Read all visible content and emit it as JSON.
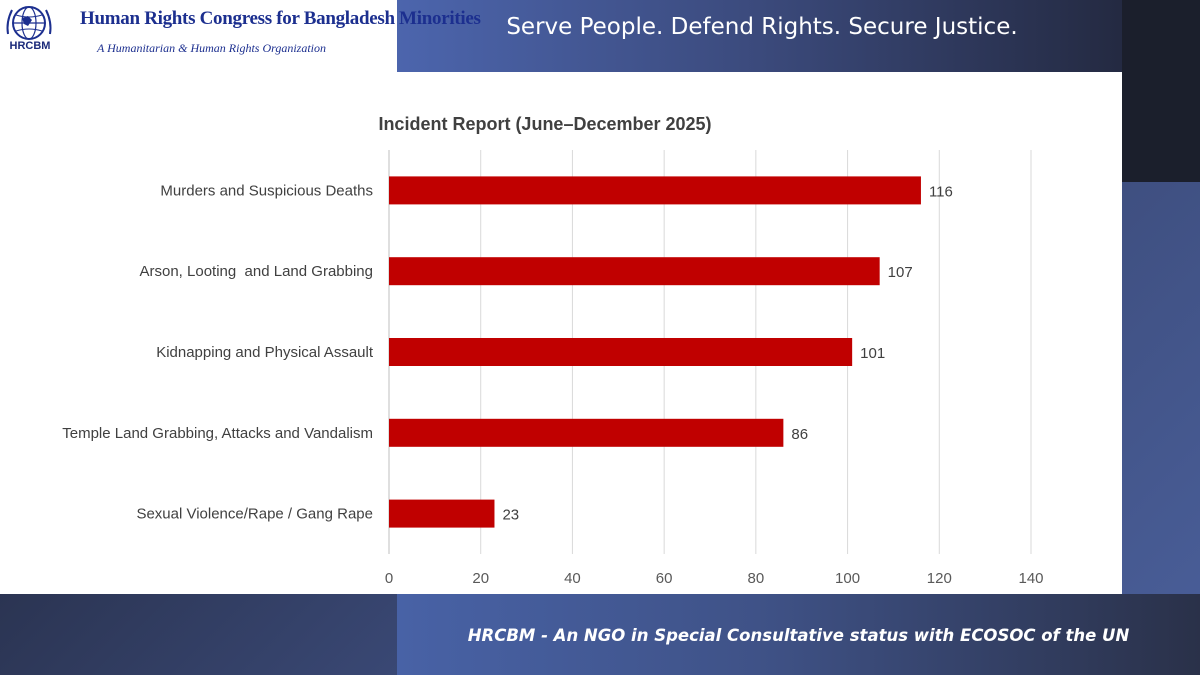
{
  "header": {
    "org_abbr": "HRCBM",
    "org_name": "Human Rights Congress for Bangladesh Minorities",
    "org_tagline": "A Humanitarian & Human Rights Organization",
    "slogan": "Serve People. Defend Rights. Secure Justice."
  },
  "footer": {
    "text": "HRCBM - An NGO in Special Consultative status with ECOSOC of the UN"
  },
  "colors": {
    "bar": "#c00000",
    "brand_blue": "#1c2f8f",
    "gridline": "#d9d9d9"
  },
  "chart_data": {
    "type": "bar",
    "orientation": "horizontal",
    "title": "Incident Report (June–December 2025)",
    "categories": [
      "Murders and Suspicious Deaths",
      "Arson, Looting  and Land Grabbing",
      "Kidnapping and Physical Assault",
      "Temple Land Grabbing, Attacks and Vandalism",
      "Sexual Violence/Rape / Gang Rape"
    ],
    "values": [
      116,
      107,
      101,
      86,
      23
    ],
    "xlim": [
      0,
      140
    ],
    "xticks": [
      0,
      20,
      40,
      60,
      80,
      100,
      120,
      140
    ],
    "grid": "vertical",
    "legend": "none",
    "data_labels": true
  }
}
